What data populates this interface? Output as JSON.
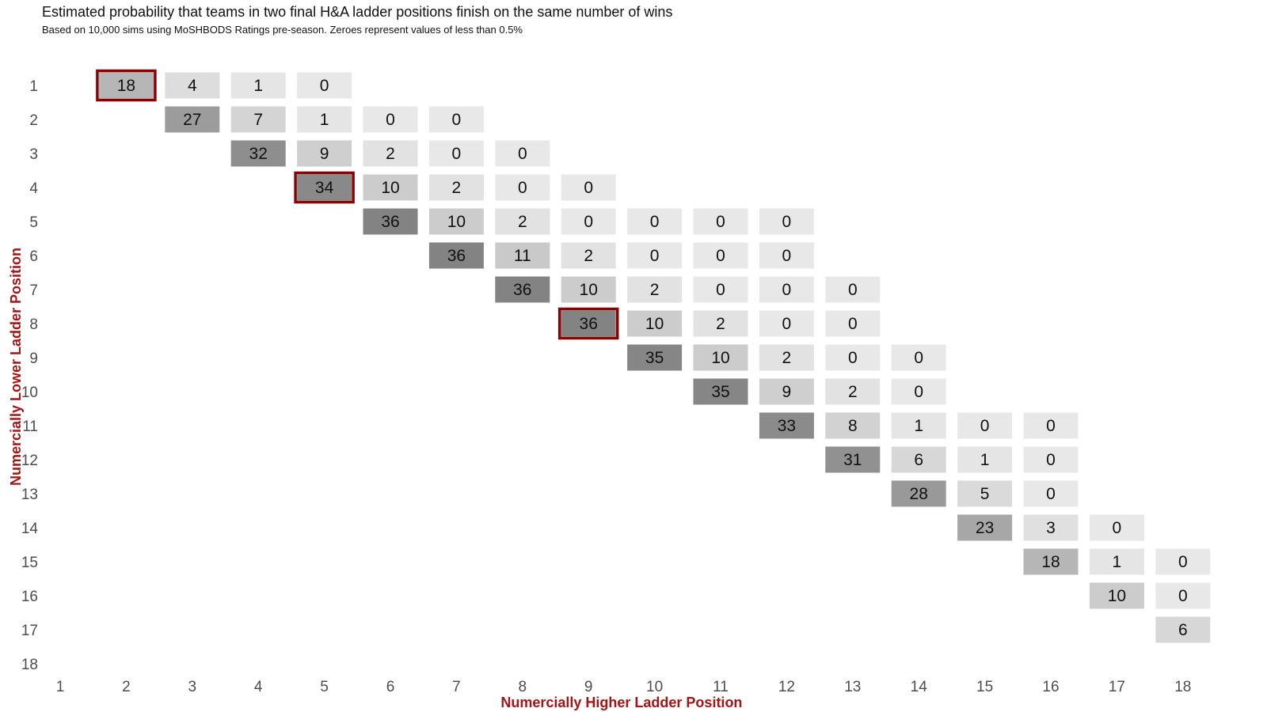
{
  "chart_data": {
    "type": "heatmap",
    "title": "Estimated probability that teams in two final H&A ladder positions finish on the same number of wins",
    "subtitle": "Based on 10,000 sims using MoSHBODS Ratings pre-season. Zeroes represent values of less than 0.5%",
    "xlabel": "Numercially Higher Ladder Position",
    "ylabel": "Numercially Lower Ladder Position",
    "x_categories": [
      "1",
      "2",
      "3",
      "4",
      "5",
      "6",
      "7",
      "8",
      "9",
      "10",
      "11",
      "12",
      "13",
      "14",
      "15",
      "16",
      "17",
      "18"
    ],
    "y_categories": [
      "1",
      "2",
      "3",
      "4",
      "5",
      "6",
      "7",
      "8",
      "9",
      "10",
      "11",
      "12",
      "13",
      "14",
      "15",
      "16",
      "17",
      "18"
    ],
    "highlighted": [
      [
        1,
        2
      ],
      [
        4,
        5
      ],
      [
        8,
        9
      ]
    ],
    "cells": [
      {
        "y": 1,
        "x": 2,
        "value": 18
      },
      {
        "y": 1,
        "x": 3,
        "value": 4
      },
      {
        "y": 1,
        "x": 4,
        "value": 1
      },
      {
        "y": 1,
        "x": 5,
        "value": 0
      },
      {
        "y": 2,
        "x": 3,
        "value": 27
      },
      {
        "y": 2,
        "x": 4,
        "value": 7
      },
      {
        "y": 2,
        "x": 5,
        "value": 1
      },
      {
        "y": 2,
        "x": 6,
        "value": 0
      },
      {
        "y": 2,
        "x": 7,
        "value": 0
      },
      {
        "y": 3,
        "x": 4,
        "value": 32
      },
      {
        "y": 3,
        "x": 5,
        "value": 9
      },
      {
        "y": 3,
        "x": 6,
        "value": 2
      },
      {
        "y": 3,
        "x": 7,
        "value": 0
      },
      {
        "y": 3,
        "x": 8,
        "value": 0
      },
      {
        "y": 4,
        "x": 5,
        "value": 34
      },
      {
        "y": 4,
        "x": 6,
        "value": 10
      },
      {
        "y": 4,
        "x": 7,
        "value": 2
      },
      {
        "y": 4,
        "x": 8,
        "value": 0
      },
      {
        "y": 4,
        "x": 9,
        "value": 0
      },
      {
        "y": 5,
        "x": 6,
        "value": 36
      },
      {
        "y": 5,
        "x": 7,
        "value": 10
      },
      {
        "y": 5,
        "x": 8,
        "value": 2
      },
      {
        "y": 5,
        "x": 9,
        "value": 0
      },
      {
        "y": 5,
        "x": 10,
        "value": 0
      },
      {
        "y": 5,
        "x": 11,
        "value": 0
      },
      {
        "y": 5,
        "x": 12,
        "value": 0
      },
      {
        "y": 6,
        "x": 7,
        "value": 36
      },
      {
        "y": 6,
        "x": 8,
        "value": 11
      },
      {
        "y": 6,
        "x": 9,
        "value": 2
      },
      {
        "y": 6,
        "x": 10,
        "value": 0
      },
      {
        "y": 6,
        "x": 11,
        "value": 0
      },
      {
        "y": 6,
        "x": 12,
        "value": 0
      },
      {
        "y": 7,
        "x": 8,
        "value": 36
      },
      {
        "y": 7,
        "x": 9,
        "value": 10
      },
      {
        "y": 7,
        "x": 10,
        "value": 2
      },
      {
        "y": 7,
        "x": 11,
        "value": 0
      },
      {
        "y": 7,
        "x": 12,
        "value": 0
      },
      {
        "y": 7,
        "x": 13,
        "value": 0
      },
      {
        "y": 8,
        "x": 9,
        "value": 36
      },
      {
        "y": 8,
        "x": 10,
        "value": 10
      },
      {
        "y": 8,
        "x": 11,
        "value": 2
      },
      {
        "y": 8,
        "x": 12,
        "value": 0
      },
      {
        "y": 8,
        "x": 13,
        "value": 0
      },
      {
        "y": 9,
        "x": 10,
        "value": 35
      },
      {
        "y": 9,
        "x": 11,
        "value": 10
      },
      {
        "y": 9,
        "x": 12,
        "value": 2
      },
      {
        "y": 9,
        "x": 13,
        "value": 0
      },
      {
        "y": 9,
        "x": 14,
        "value": 0
      },
      {
        "y": 10,
        "x": 11,
        "value": 35
      },
      {
        "y": 10,
        "x": 12,
        "value": 9
      },
      {
        "y": 10,
        "x": 13,
        "value": 2
      },
      {
        "y": 10,
        "x": 14,
        "value": 0
      },
      {
        "y": 11,
        "x": 12,
        "value": 33
      },
      {
        "y": 11,
        "x": 13,
        "value": 8
      },
      {
        "y": 11,
        "x": 14,
        "value": 1
      },
      {
        "y": 11,
        "x": 15,
        "value": 0
      },
      {
        "y": 11,
        "x": 16,
        "value": 0
      },
      {
        "y": 12,
        "x": 13,
        "value": 31
      },
      {
        "y": 12,
        "x": 14,
        "value": 6
      },
      {
        "y": 12,
        "x": 15,
        "value": 1
      },
      {
        "y": 12,
        "x": 16,
        "value": 0
      },
      {
        "y": 13,
        "x": 14,
        "value": 28
      },
      {
        "y": 13,
        "x": 15,
        "value": 5
      },
      {
        "y": 13,
        "x": 16,
        "value": 0
      },
      {
        "y": 14,
        "x": 15,
        "value": 23
      },
      {
        "y": 14,
        "x": 16,
        "value": 3
      },
      {
        "y": 14,
        "x": 17,
        "value": 0
      },
      {
        "y": 15,
        "x": 16,
        "value": 18
      },
      {
        "y": 15,
        "x": 17,
        "value": 1
      },
      {
        "y": 15,
        "x": 18,
        "value": 0
      },
      {
        "y": 16,
        "x": 17,
        "value": 10
      },
      {
        "y": 16,
        "x": 18,
        "value": 0
      },
      {
        "y": 17,
        "x": 18,
        "value": 6
      }
    ],
    "value_range": [
      0,
      36
    ],
    "color_low": "#e8e8e8",
    "color_high": "#838383",
    "highlight_color": "#8b0000",
    "axis_title_color": "#a31515",
    "grid": false,
    "legend": "none"
  }
}
